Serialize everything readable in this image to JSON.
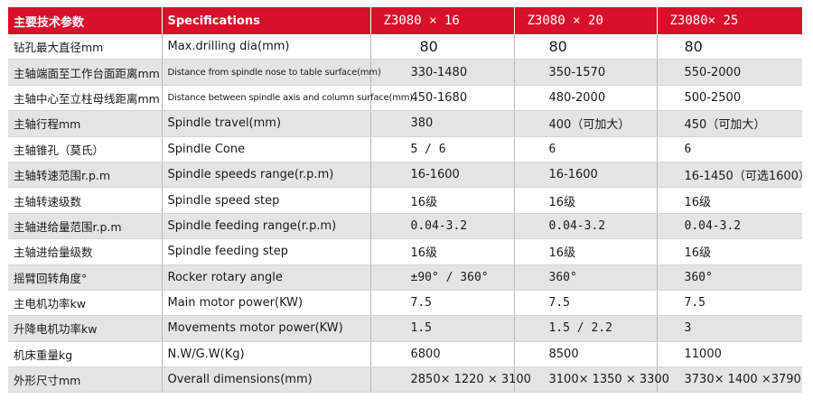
{
  "header": {
    "param_cn": "主要技术参数",
    "param_en": "Specifications",
    "models": [
      "Z3080 × 16",
      "Z3080 × 20",
      "Z3080× 25"
    ]
  },
  "rows": [
    {
      "cn": "钻孔最大直径mm",
      "en": "Max.drilling dia(mm)",
      "v1": "80",
      "v2": "80",
      "v3": "80"
    },
    {
      "cn": "主轴端面至工作台面距离mm",
      "en": "Distance from spindle nose to table surface(mm)",
      "v1": "330-1480",
      "v2": "350-1570",
      "v3": "550-2000"
    },
    {
      "cn": "主轴中心至立柱母线距离mm",
      "en": "Distance between spindle axis and column surface(mm)",
      "v1": "450-1680",
      "v2": "480-2000",
      "v3": "500-2500"
    },
    {
      "cn": "主轴行程mm",
      "en": "Spindle travel(mm)",
      "v1": "380",
      "v2": "400（可加大）",
      "v3": "450（可加大）"
    },
    {
      "cn": "主轴锥孔（莫氏）",
      "en": "Spindle Cone",
      "v1": "5 / 6",
      "v2": "6",
      "v3": "6"
    },
    {
      "cn": "主轴转速范围r.p.m",
      "en": "Spindle speeds range(r.p.m)",
      "v1": "16-1600",
      "v2": "16-1600",
      "v3": "16-1450（可选1600）"
    },
    {
      "cn": "主轴转速级数",
      "en": "Spindle speed step",
      "v1": "16级",
      "v2": "16级",
      "v3": "16级"
    },
    {
      "cn": "主轴进给量范围r.p.m",
      "en": "Spindle feeding range(r.p.m)",
      "v1": "0.04-3.2",
      "v2": "0.04-3.2",
      "v3": "0.04-3.2"
    },
    {
      "cn": "主轴进给量级数",
      "en": "Spindle feeding step",
      "v1": "16级",
      "v2": "16级",
      "v3": "16级"
    },
    {
      "cn": "摇臂回转角度°",
      "en": "Rocker rotary angle",
      "v1": "±90° / 360°",
      "v2": "360°",
      "v3": "360°"
    },
    {
      "cn": "主电机功率kw",
      "en": "Main motor power(KW)",
      "v1": "7.5",
      "v2": "7.5",
      "v3": "7.5"
    },
    {
      "cn": "升降电机功率kw",
      "en": "Movements motor power(KW)",
      "v1": "1.5",
      "v2": "1.5 / 2.2",
      "v3": "3"
    },
    {
      "cn": "机床重量kg",
      "en": "N.W/G.W(Kg)",
      "v1": "6800",
      "v2": "8500",
      "v3": "11000"
    },
    {
      "cn": "外形尺寸mm",
      "en": "Overall dimensions(mm)",
      "v1": "2850× 1220 × 3100",
      "v2": "3100× 1350 × 3300",
      "v3": "3730× 1400 ×3790"
    }
  ]
}
